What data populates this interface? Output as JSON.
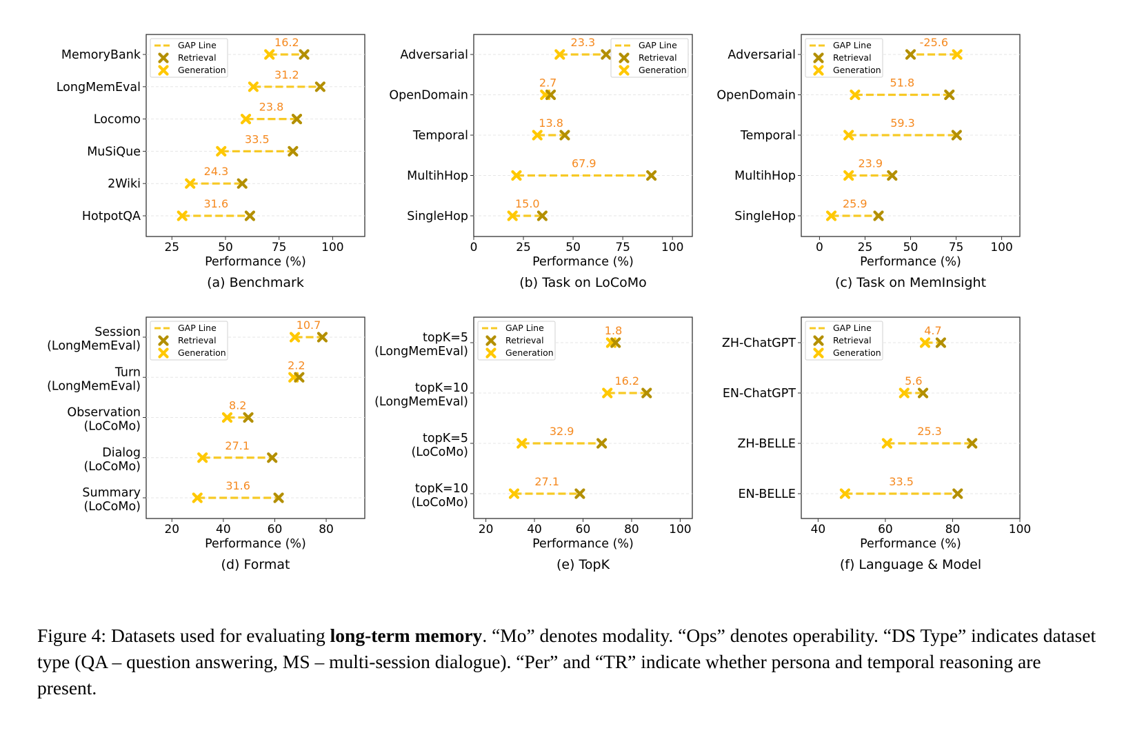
{
  "colors": {
    "retrieval": "#b38f00",
    "generation": "#ffc800",
    "gap_line": "#f7c925",
    "gap_label": "#f5891f",
    "grid": "#e6e6e6"
  },
  "legend": {
    "entries": [
      "GAP Line",
      "Retrieval",
      "Generation"
    ]
  },
  "chart_data": [
    {
      "type": "scatter",
      "subtype": "dumbbell",
      "id": "a",
      "caption": "(a) Benchmark",
      "xlabel": "Performance (%)",
      "ylabel": "",
      "xlim": [
        13,
        115
      ],
      "xticks": [
        25,
        50,
        75,
        100
      ],
      "legend_position": "upper-left",
      "grid": "horizontal-dashed",
      "categories": [
        "MemoryBank",
        "LongMemEval",
        "Locomo",
        "MuSiQue",
        "2Wiki",
        "HotpotQA"
      ],
      "series": [
        {
          "name": "Retrieval",
          "values": [
            86.7,
            94.2,
            83.3,
            81.5,
            57.8,
            61.4
          ]
        },
        {
          "name": "Generation",
          "values": [
            70.5,
            63.0,
            59.5,
            48.0,
            33.5,
            29.8
          ]
        }
      ],
      "gap_labels": [
        "16.2",
        "31.2",
        "23.8",
        "33.5",
        "24.3",
        "31.6"
      ]
    },
    {
      "type": "scatter",
      "subtype": "dumbbell",
      "id": "b",
      "caption": "(b) Task on LoCoMo",
      "xlabel": "Performance (%)",
      "ylabel": "",
      "xlim": [
        0,
        110
      ],
      "xticks": [
        0,
        25,
        50,
        75,
        100
      ],
      "legend_position": "upper-right",
      "grid": "horizontal-dashed",
      "categories": [
        "Adversarial",
        "OpenDomain",
        "Temporal",
        "MultihHop",
        "SingleHop"
      ],
      "series": [
        {
          "name": "Retrieval",
          "values": [
            66.6,
            38.7,
            45.8,
            89.4,
            34.5
          ]
        },
        {
          "name": "Generation",
          "values": [
            43.3,
            36.0,
            32.0,
            21.5,
            19.5
          ]
        }
      ],
      "gap_labels": [
        "23.3",
        "2.7",
        "13.8",
        "67.9",
        "15.0"
      ]
    },
    {
      "type": "scatter",
      "subtype": "dumbbell",
      "id": "c",
      "caption": "(c) Task on MemInsight",
      "xlabel": "Performance (%)",
      "ylabel": "",
      "xlim": [
        -10,
        110
      ],
      "xticks": [
        0,
        25,
        50,
        75,
        100
      ],
      "legend_position": "upper-left",
      "grid": "horizontal-dashed",
      "categories": [
        "Adversarial",
        "OpenDomain",
        "Temporal",
        "MultihHop",
        "SingleHop"
      ],
      "series": [
        {
          "name": "Retrieval",
          "values": [
            50.0,
            71.3,
            75.3,
            39.9,
            32.4
          ]
        },
        {
          "name": "Generation",
          "values": [
            75.6,
            19.5,
            16.0,
            16.0,
            6.5
          ]
        }
      ],
      "gap_labels": [
        "-25.6",
        "51.8",
        "59.3",
        "23.9",
        "25.9"
      ]
    },
    {
      "type": "scatter",
      "subtype": "dumbbell",
      "id": "d",
      "caption": "(d) Format",
      "xlabel": "Performance (%)",
      "ylabel": "",
      "xlim": [
        10,
        95
      ],
      "xticks": [
        20,
        40,
        60,
        80
      ],
      "legend_position": "upper-left",
      "grid": "horizontal-dashed",
      "categories": [
        "Session\n(LongMemEval)",
        "Turn\n(LongMemEval)",
        "Observation\n(LoCoMo)",
        "Dialog\n(LoCoMo)",
        "Summary\n(LoCoMo)"
      ],
      "series": [
        {
          "name": "Retrieval",
          "values": [
            78.5,
            69.5,
            49.7,
            59.0,
            61.5
          ]
        },
        {
          "name": "Generation",
          "values": [
            67.8,
            67.3,
            41.5,
            31.9,
            29.9
          ]
        }
      ],
      "gap_labels": [
        "10.7",
        "2.2",
        "8.2",
        "27.1",
        "31.6"
      ]
    },
    {
      "type": "scatter",
      "subtype": "dumbbell",
      "id": "e",
      "caption": "(e) TopK",
      "xlabel": "Performance (%)",
      "ylabel": "",
      "xlim": [
        15,
        105
      ],
      "xticks": [
        20,
        40,
        60,
        80,
        100
      ],
      "legend_position": "upper-left",
      "grid": "horizontal-dashed",
      "categories": [
        "topK=5\n(LongMemEval)",
        "topK=10\n(LongMemEval)",
        "topK=5\n(LoCoMo)",
        "topK=10\n(LoCoMo)"
      ],
      "series": [
        {
          "name": "Retrieval",
          "values": [
            73.4,
            86.2,
            67.7,
            58.7
          ]
        },
        {
          "name": "Generation",
          "values": [
            71.6,
            70.0,
            34.8,
            31.6
          ]
        }
      ],
      "gap_labels": [
        "1.8",
        "16.2",
        "32.9",
        "27.1"
      ]
    },
    {
      "type": "scatter",
      "subtype": "dumbbell",
      "id": "f",
      "caption": "(f) Language & Model",
      "xlabel": "Performance (%)",
      "ylabel": "",
      "xlim": [
        35,
        100
      ],
      "xticks": [
        40,
        60,
        80,
        100
      ],
      "legend_position": "upper-left",
      "grid": "horizontal-dashed",
      "categories": [
        "ZH-ChatGPT",
        "EN-ChatGPT",
        "ZH-BELLE",
        "EN-BELLE"
      ],
      "series": [
        {
          "name": "Retrieval",
          "values": [
            76.5,
            71.2,
            85.8,
            81.5
          ]
        },
        {
          "name": "Generation",
          "values": [
            71.8,
            65.6,
            60.5,
            48.0
          ]
        }
      ],
      "gap_labels": [
        "4.7",
        "5.6",
        "25.3",
        "33.5"
      ]
    }
  ],
  "figure_caption": {
    "label": "Figure 4:",
    "text_before_bold": " Datasets used for evaluating ",
    "bold": "long-term memory",
    "text_after_bold": ". “Mo” denotes modality. “Ops” denotes operability. “DS Type” indicates dataset type (QA – question answering, MS – multi-session dialogue). “Per” and “TR” indicate whether persona and temporal reasoning are present."
  }
}
